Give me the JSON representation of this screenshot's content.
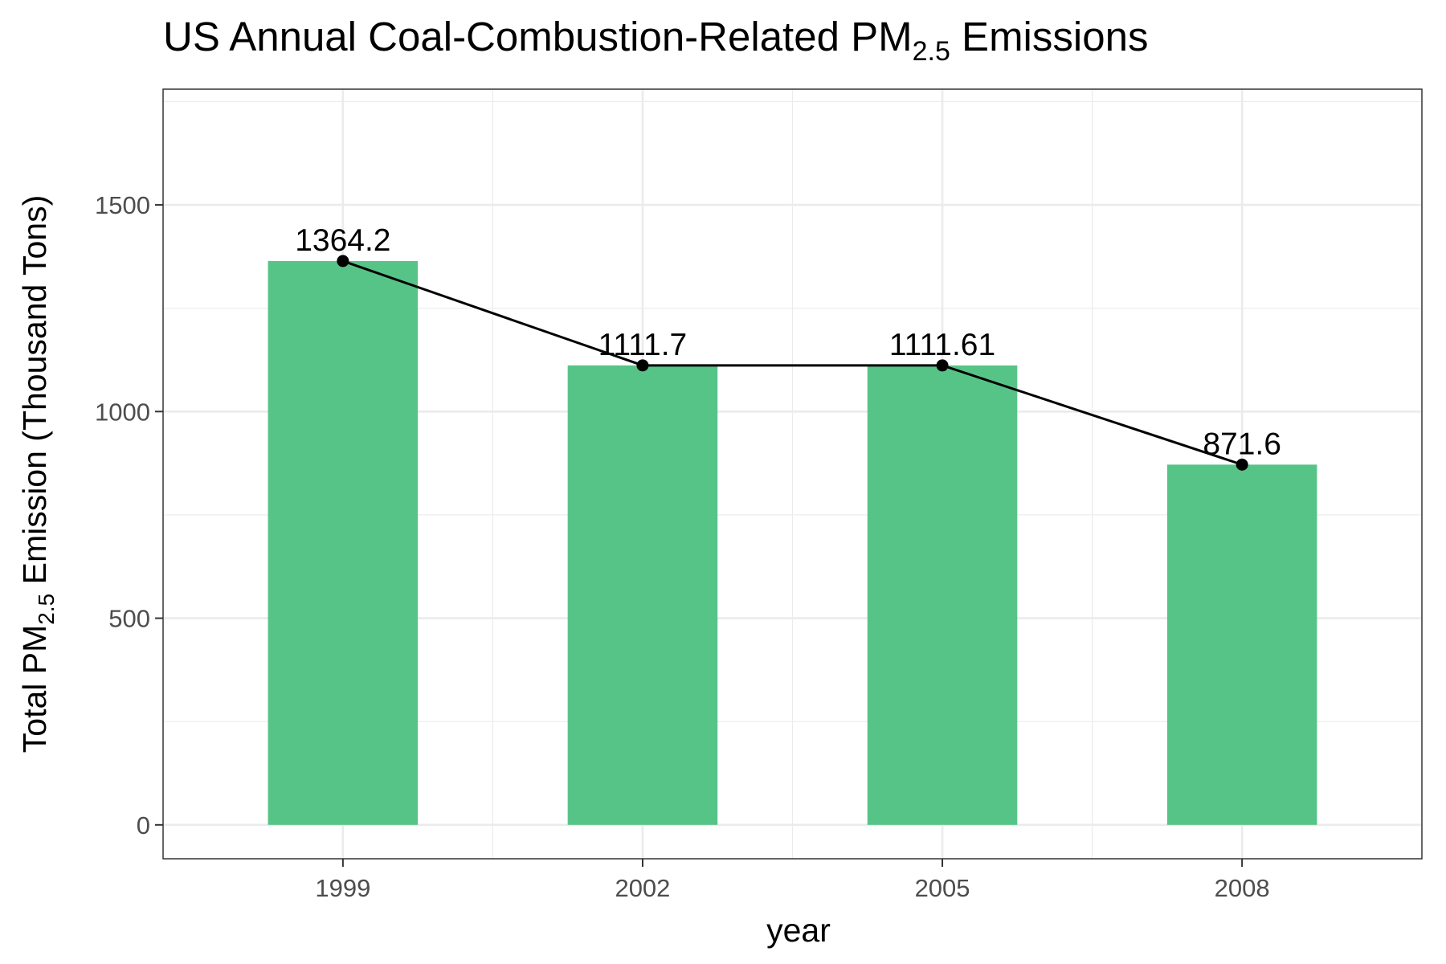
{
  "chart_data": {
    "type": "bar",
    "title": "US Annual Coal-Combustion-Related PM",
    "title_subscript": "2.5",
    "title_suffix": " Emissions",
    "xlabel": "year",
    "ylabel": "Total PM",
    "ylabel_subscript": "2.5",
    "ylabel_suffix": " Emission (Thousand Tons)",
    "categories": [
      "1999",
      "2002",
      "2005",
      "2008"
    ],
    "values": [
      1364.2,
      1111.7,
      1111.61,
      871.6
    ],
    "data_labels": [
      "1364.2",
      "1111.7",
      "1111.61",
      "871.6"
    ],
    "overlay": {
      "type": "line",
      "markers": true,
      "values": [
        1364.2,
        1111.7,
        1111.61,
        871.6
      ]
    },
    "yticks": [
      0,
      500,
      1000,
      1500
    ],
    "ytick_labels": [
      "0",
      "500",
      "1000",
      "1500"
    ],
    "ylim": [
      -82,
      1780
    ],
    "grid": true,
    "colors": {
      "bar": "#57c487",
      "line": "#000000",
      "panel_border": "#333333",
      "grid": "#ebebeb"
    }
  }
}
